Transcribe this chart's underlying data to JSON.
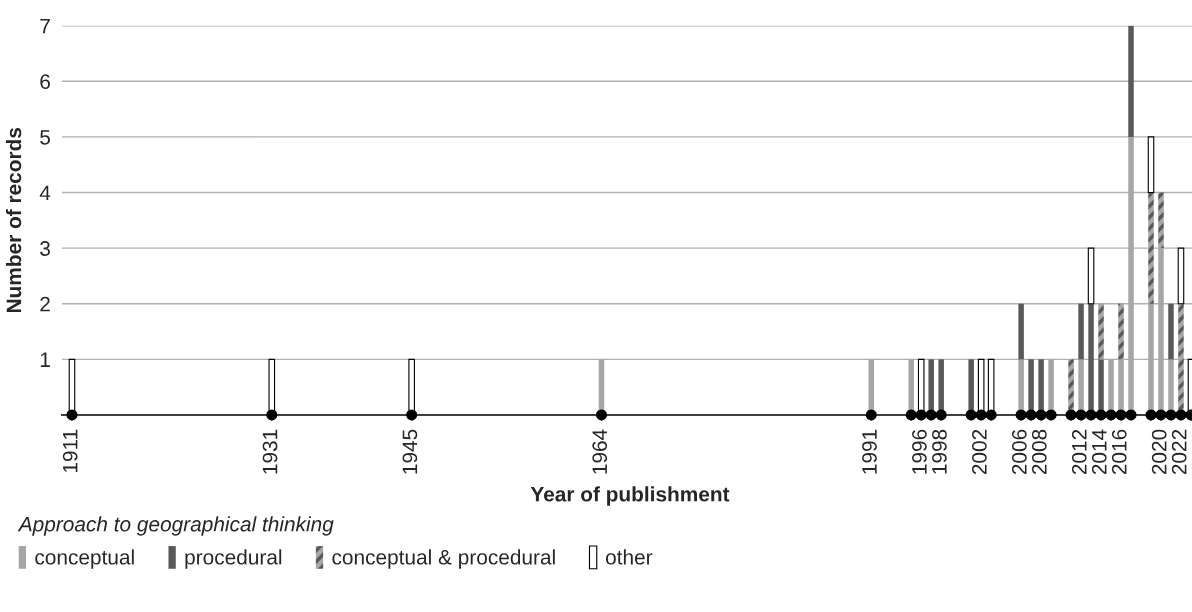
{
  "chart_data": {
    "type": "bar",
    "stacked": true,
    "xlabel": "Year of publishment",
    "ylabel": "Number of records",
    "legend_title": "Approach to geographical thinking",
    "x": [
      1911,
      1931,
      1945,
      1964,
      1991,
      1995,
      1996,
      1997,
      1998,
      2001,
      2002,
      2003,
      2006,
      2007,
      2008,
      2009,
      2011,
      2012,
      2013,
      2014,
      2015,
      2016,
      2017,
      2019,
      2020,
      2021,
      2022,
      2023
    ],
    "series": [
      {
        "name": "conceptual",
        "color": "#a6a6a6",
        "values": [
          0,
          0,
          0,
          1,
          1,
          1,
          0,
          0,
          0,
          0,
          0,
          0,
          1,
          0,
          0,
          1,
          0,
          1,
          0,
          0,
          1,
          1,
          5,
          2,
          3,
          1,
          0,
          0
        ]
      },
      {
        "name": "procedural",
        "color": "#595959",
        "values": [
          0,
          0,
          0,
          0,
          0,
          0,
          0,
          1,
          1,
          1,
          0,
          0,
          1,
          1,
          1,
          0,
          0,
          1,
          2,
          1,
          0,
          0,
          2,
          0,
          0,
          1,
          0,
          0
        ]
      },
      {
        "name": "conceptual & procedural",
        "color": "#a6a6a6",
        "values": [
          0,
          0,
          0,
          0,
          0,
          0,
          0,
          0,
          0,
          0,
          0,
          0,
          0,
          0,
          0,
          0,
          1,
          0,
          0,
          1,
          0,
          1,
          0,
          2,
          1,
          0,
          2,
          0
        ]
      },
      {
        "name": "other",
        "color": "#ffffff",
        "values": [
          1,
          1,
          1,
          0,
          0,
          0,
          1,
          0,
          0,
          0,
          1,
          1,
          0,
          0,
          0,
          0,
          0,
          0,
          1,
          0,
          0,
          0,
          0,
          1,
          0,
          0,
          1,
          1
        ]
      },
      {
        "type": "scatter",
        "marker": "circle",
        "color": "#000000",
        "x": [
          1911,
          1931,
          1945,
          1964,
          1991,
          1995,
          1996,
          1997,
          1998,
          2001,
          2002,
          2003,
          2006,
          2007,
          2008,
          2009,
          2011,
          2012,
          2013,
          2014,
          2015,
          2016,
          2017,
          2019,
          2020,
          2021,
          2022,
          2023
        ],
        "values": [
          0,
          0,
          0,
          0,
          0,
          0,
          0,
          0,
          0,
          0,
          0,
          0,
          0,
          0,
          0,
          0,
          0,
          0,
          0,
          0,
          0,
          0,
          0,
          0,
          0,
          0,
          0,
          0
        ]
      }
    ],
    "xlim": [
      1910,
      2023.7
    ],
    "ylim": [
      0,
      7
    ],
    "yticks": [
      1,
      2,
      3,
      4,
      5,
      6,
      7
    ],
    "xticks": [
      1911,
      1931,
      1945,
      1964,
      1991,
      {
        "value": 1995,
        "label": null
      },
      1996,
      {
        "value": 1997,
        "label": null
      },
      1998,
      {
        "value": 2001,
        "label": null
      },
      2002,
      {
        "value": 2003,
        "label": null
      },
      2006,
      {
        "value": 2007,
        "label": null
      },
      2008,
      {
        "value": 2009,
        "label": null
      },
      {
        "value": 2011,
        "label": null
      },
      2012,
      {
        "value": 2013,
        "label": null
      },
      2014,
      {
        "value": 2015,
        "label": null
      },
      2016,
      {
        "value": 2017,
        "label": null
      },
      {
        "value": 2019,
        "label": null
      },
      2020,
      {
        "value": 2021,
        "label": null
      },
      2022,
      {
        "value": 2023,
        "label": null
      }
    ],
    "grid": "y",
    "legend": "bottom left"
  }
}
